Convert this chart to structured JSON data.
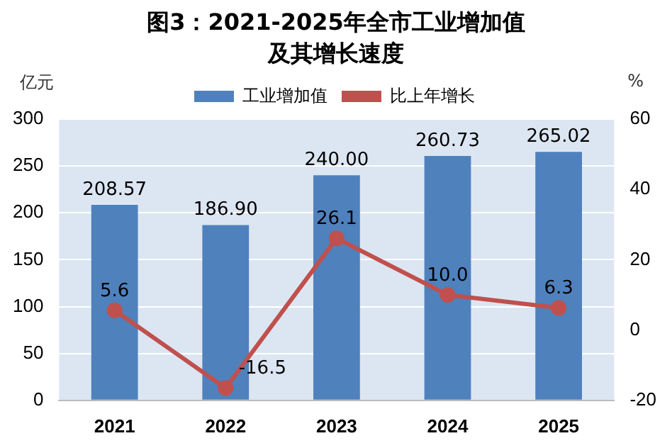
{
  "chart_data": {
    "type": "bar",
    "title": "图3：2021-2025年全市工业增加值及其增长速度",
    "ylabel": "亿元",
    "y2label": "%",
    "categories": [
      "2021",
      "2022",
      "2023",
      "2024",
      "2025"
    ],
    "series": [
      {
        "name": "工业增加值",
        "color": "#4f81bd",
        "values": [
          208.57,
          186.9,
          240.0,
          260.73,
          265.02
        ],
        "value_labels": [
          "208.57",
          "186.90",
          "240.00",
          "260.73",
          "265.02"
        ]
      },
      {
        "name": "比上年增长",
        "type": "line",
        "axis": "y2",
        "color": "#c0504d",
        "marker": "circle",
        "values": [
          5.6,
          -16.5,
          26.1,
          10.0,
          6.3
        ],
        "value_labels": [
          "5.6",
          "-16.5",
          "26.1",
          "10.0",
          "6.3"
        ]
      }
    ],
    "ylim": [
      0,
      300
    ],
    "yticks": [
      0,
      50,
      100,
      150,
      200,
      250,
      300
    ],
    "y2lim": [
      -20,
      60
    ],
    "y2ticks": [
      -20,
      0,
      20,
      40,
      60
    ],
    "grid": "y",
    "legend": "top"
  }
}
